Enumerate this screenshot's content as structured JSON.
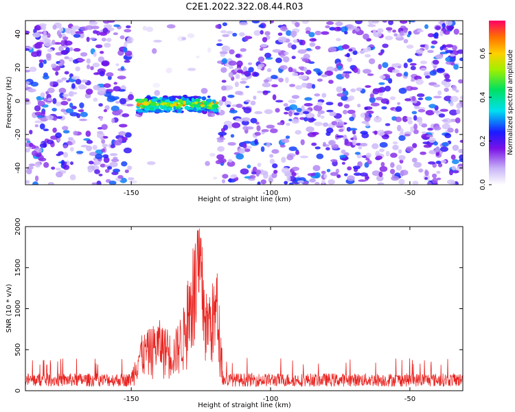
{
  "title": "C2E1.2022.322.08.44.R03",
  "colors": {
    "snr_line": "#e8231f",
    "axis": "#000000"
  },
  "chart_data": [
    {
      "type": "heatmap",
      "xlabel": "Height of straight line (km)",
      "ylabel": "Frequency (Hz)",
      "xlim": [
        -188,
        -31
      ],
      "ylim": [
        -50,
        48
      ],
      "x_ticks": [
        -150,
        -100,
        -50
      ],
      "y_ticks": [
        -40,
        -20,
        0,
        20,
        40
      ],
      "colorbar": {
        "label": "Normalized spectral amplitude",
        "range": [
          0.0,
          0.75
        ],
        "ticks": [
          0.0,
          0.2,
          0.4,
          0.6
        ]
      },
      "blank_region": {
        "x": [
          -150,
          -119
        ]
      },
      "signal_band": {
        "x": [
          -150,
          -119
        ],
        "freq_center": -2,
        "peak_amplitude": 0.75
      },
      "noise_amplitude_range": [
        0.05,
        0.3
      ]
    },
    {
      "type": "line",
      "xlabel": "Height of straight line (km)",
      "ylabel": "SNR (10 * v/v)",
      "xlim": [
        -188,
        -31
      ],
      "ylim": [
        0,
        2000
      ],
      "x_ticks": [
        -150,
        -100,
        -50
      ],
      "y_ticks": [
        0,
        500,
        1000,
        1500,
        2000
      ],
      "series": [
        {
          "color": "#e8231f",
          "baseline_range": [
            50,
            300
          ],
          "key_points": [
            {
              "x": -150,
              "y": 230
            },
            {
              "x": -147,
              "y": 650
            },
            {
              "x": -140,
              "y": 870
            },
            {
              "x": -135,
              "y": 660
            },
            {
              "x": -131,
              "y": 1050
            },
            {
              "x": -127,
              "y": 1920
            },
            {
              "x": -125,
              "y": 2000
            },
            {
              "x": -123,
              "y": 1200
            },
            {
              "x": -119,
              "y": 1440
            },
            {
              "x": -117,
              "y": 230
            }
          ]
        }
      ]
    }
  ]
}
